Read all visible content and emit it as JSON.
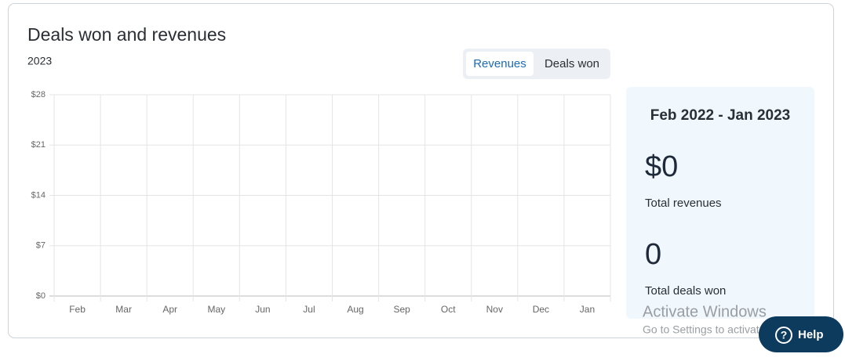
{
  "chart_data": {
    "type": "bar",
    "title": "Deals won and revenues",
    "subtitle": "2023",
    "categories": [
      "Feb",
      "Mar",
      "Apr",
      "May",
      "Jun",
      "Jul",
      "Aug",
      "Sep",
      "Oct",
      "Nov",
      "Dec",
      "Jan"
    ],
    "values": [
      0,
      0,
      0,
      0,
      0,
      0,
      0,
      0,
      0,
      0,
      0,
      0
    ],
    "color": "#1a6bb5",
    "ylim": [
      0,
      28
    ],
    "yticks": [
      {
        "value": 0,
        "label": "$0"
      },
      {
        "value": 7,
        "label": "$7"
      },
      {
        "value": 14,
        "label": "$14"
      },
      {
        "value": 21,
        "label": "$21"
      },
      {
        "value": 28,
        "label": "$28"
      }
    ],
    "grid": true
  },
  "tabs": [
    "Revenues",
    "Deals won"
  ],
  "summary": {
    "period": "Feb 2022 - Jan 2023",
    "total_revenues": "$0",
    "total_revenues_label": "Total revenues",
    "total_deals": "0",
    "total_deals_label": "Total deals won"
  },
  "watermark": {
    "title": "Activate Windows",
    "text": "Go to Settings to activate Windows"
  },
  "help": {
    "icon": "?",
    "label": "Help"
  }
}
